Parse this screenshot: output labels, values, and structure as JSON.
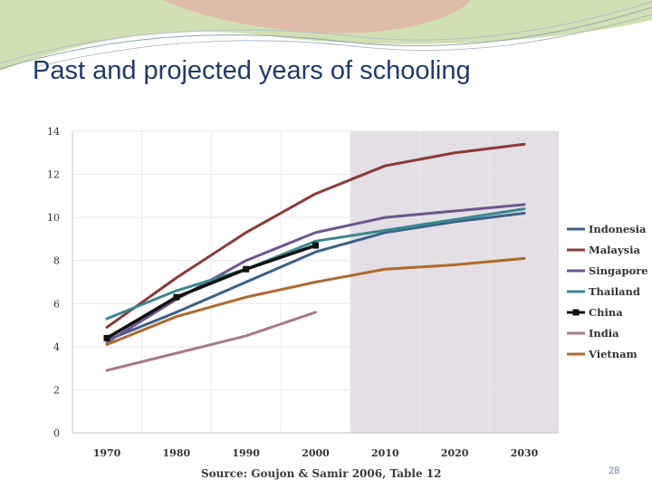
{
  "slide": {
    "title": "Past and projected years of schooling",
    "source": "Source: Goujon & Samir 2006, Table 12",
    "page_number": "28"
  },
  "chart_data": {
    "type": "line",
    "title": "Past and projected years of schooling",
    "xlabel": "",
    "ylabel": "",
    "categories": [
      "1970",
      "1980",
      "1990",
      "2000",
      "2010",
      "2020",
      "2030"
    ],
    "x": [
      1970,
      1980,
      1990,
      2000,
      2010,
      2020,
      2030
    ],
    "y_ticks": [
      0,
      2,
      4,
      6,
      8,
      10,
      12,
      14
    ],
    "xlim": [
      1970,
      2030
    ],
    "ylim": [
      0,
      14
    ],
    "grid": true,
    "legend_position": "right",
    "projection_region": [
      2010,
      2030
    ],
    "series": [
      {
        "name": "Indonesia",
        "color": "#3c6189",
        "x": [
          1970,
          1980,
          1990,
          2000,
          2010,
          2020,
          2030
        ],
        "values": [
          4.3,
          5.6,
          7.0,
          8.4,
          9.3,
          9.8,
          10.2
        ]
      },
      {
        "name": "Malaysia",
        "color": "#8b3a3a",
        "x": [
          1970,
          1980,
          1990,
          2000,
          2010,
          2020,
          2030
        ],
        "values": [
          4.9,
          7.2,
          9.3,
          11.1,
          12.4,
          13.0,
          13.4
        ]
      },
      {
        "name": "Singapore",
        "color": "#6e5590",
        "x": [
          1970,
          1980,
          1990,
          2000,
          2010,
          2020,
          2030
        ],
        "values": [
          4.2,
          6.2,
          8.0,
          9.3,
          10.0,
          10.3,
          10.6
        ]
      },
      {
        "name": "Thailand",
        "color": "#3a8890",
        "x": [
          1970,
          1980,
          1990,
          2000,
          2010,
          2020,
          2030
        ],
        "values": [
          5.3,
          6.6,
          7.6,
          8.9,
          9.4,
          9.9,
          10.4
        ]
      },
      {
        "name": "China",
        "color": "#111111",
        "x": [
          1970,
          1980,
          1990,
          2000
        ],
        "values": [
          4.4,
          6.3,
          7.6,
          8.7
        ]
      },
      {
        "name": "India",
        "color": "#a87a86",
        "x": [
          1970,
          1980,
          1990,
          2000
        ],
        "values": [
          2.9,
          3.7,
          4.5,
          5.6
        ]
      },
      {
        "name": "Vietnam",
        "color": "#b06a2d",
        "x": [
          1970,
          1980,
          1990,
          2000,
          2010,
          2020,
          2030
        ],
        "values": [
          4.1,
          5.4,
          6.3,
          7.0,
          7.6,
          7.8,
          8.1
        ]
      }
    ]
  }
}
